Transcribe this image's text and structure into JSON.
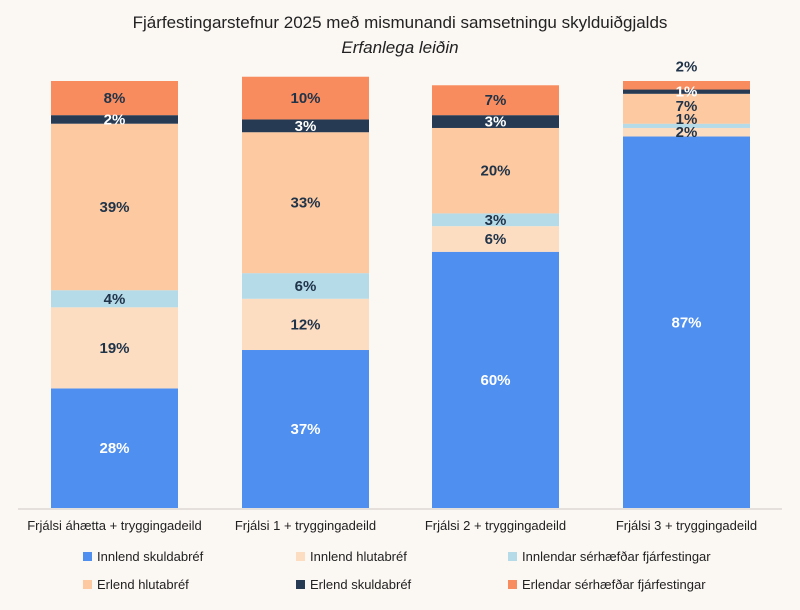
{
  "chart_data": {
    "type": "bar",
    "stacked": true,
    "title": "Fjárfestingarstefnur 2025 með mismunandi samsetningu skylduiðgjalds",
    "subtitle": "Erfanlega leiðin",
    "categories": [
      "Frjálsi áhætta + tryggingadeild",
      "Frjálsi 1 + tryggingadeild",
      "Frjálsi 2 + tryggingadeild",
      "Frjálsi 3 + tryggingadeild"
    ],
    "unit": "%",
    "ylim": [
      0,
      100
    ],
    "grid": false,
    "legend_position": "bottom",
    "series": [
      {
        "name": "Innlend skuldabréf",
        "color": "#4f8ff0",
        "text_color": "#ffffff",
        "values": [
          28,
          37,
          60,
          87
        ]
      },
      {
        "name": "Innlend hlutabréf",
        "color": "#fdddc2",
        "text_color": "#1f3349",
        "values": [
          19,
          12,
          6,
          2
        ]
      },
      {
        "name": "Innlendar sérhæfðar fjárfestingar",
        "color": "#b5dae8",
        "text_color": "#1f3349",
        "values": [
          4,
          6,
          3,
          1
        ]
      },
      {
        "name": "Erlend hlutabréf",
        "color": "#fdc9a0",
        "text_color": "#1f3349",
        "values": [
          39,
          33,
          20,
          7
        ]
      },
      {
        "name": "Erlend skuldabréf",
        "color": "#263b53",
        "text_color": "#ffffff",
        "values": [
          2,
          3,
          3,
          1
        ]
      },
      {
        "name": "Erlendar sérhæfðar fjárfestingar",
        "color": "#f88c5e",
        "text_color": "#1f3349",
        "values": [
          8,
          10,
          7,
          2
        ]
      }
    ]
  }
}
